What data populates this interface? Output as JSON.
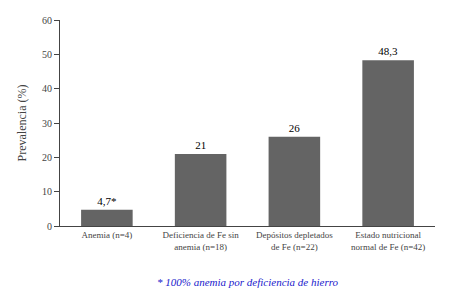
{
  "chart_data": {
    "type": "bar",
    "categories": [
      "Anemia (n=4)",
      "Deficiencia de Fe sin\nanemia (n=18)",
      "Depósitos depletados\nde Fe (n=22)",
      "Estado nutricional\nnormal de Fe (n=42)"
    ],
    "values": [
      4.7,
      21,
      26,
      48.3
    ],
    "value_labels": [
      "4,7*",
      "21",
      "26",
      "48,3"
    ],
    "data_labels": true,
    "color": "#646464",
    "ylabel": "Prevalencia (%)",
    "ylim": [
      0,
      60
    ],
    "yticks": [
      0,
      10,
      20,
      30,
      40,
      50,
      60
    ],
    "grid": false,
    "annotations": [
      "* 100% anemia por deficiencia de hierro"
    ]
  }
}
